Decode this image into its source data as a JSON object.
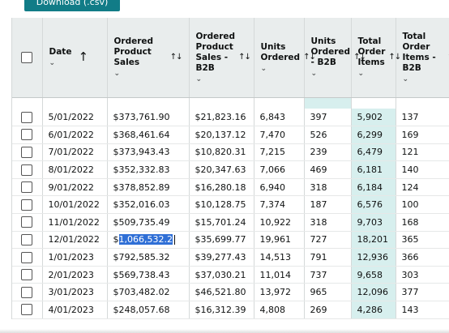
{
  "download_button": {
    "label": "Download (.csv)"
  },
  "colors": {
    "accent": "#117c87",
    "header_bg": "#e9eded",
    "highlight_column": "#d7efee",
    "selection": "#2f6fd6"
  },
  "columns": [
    {
      "label": "Date",
      "sort": "up-arrow-icon"
    },
    {
      "label": "Ordered Product Sales",
      "sort": "sort-updown-icon"
    },
    {
      "label": "Ordered Product Sales - B2B",
      "sort": "sort-updown-icon"
    },
    {
      "label": "Units Ordered",
      "sort": "sort-updown-icon"
    },
    {
      "label": "Units Ordered - B2B",
      "sort": "sort-updown-icon"
    },
    {
      "label": "Total Order Items",
      "sort": "sort-updown-icon"
    },
    {
      "label": "Total Order Items - B2B",
      "sort": "sort-updown-icon"
    }
  ],
  "rows": [
    {
      "date": "5/01/2022",
      "sales": "$373,761.90",
      "sales_b2b": "$21,823.16",
      "units": "6,843",
      "units_b2b": "397",
      "items": "5,902",
      "items_b2b": "137"
    },
    {
      "date": "6/01/2022",
      "sales": "$368,461.64",
      "sales_b2b": "$20,137.12",
      "units": "7,470",
      "units_b2b": "526",
      "items": "6,299",
      "items_b2b": "169"
    },
    {
      "date": "7/01/2022",
      "sales": "$373,943.43",
      "sales_b2b": "$10,820.31",
      "units": "7,215",
      "units_b2b": "239",
      "items": "6,479",
      "items_b2b": "121"
    },
    {
      "date": "8/01/2022",
      "sales": "$352,332.83",
      "sales_b2b": "$20,347.63",
      "units": "7,066",
      "units_b2b": "469",
      "items": "6,181",
      "items_b2b": "140"
    },
    {
      "date": "9/01/2022",
      "sales": "$378,852.89",
      "sales_b2b": "$16,280.18",
      "units": "6,940",
      "units_b2b": "318",
      "items": "6,184",
      "items_b2b": "124"
    },
    {
      "date": "10/01/2022",
      "sales": "$352,016.03",
      "sales_b2b": "$10,128.75",
      "units": "7,374",
      "units_b2b": "187",
      "items": "6,576",
      "items_b2b": "100"
    },
    {
      "date": "11/01/2022",
      "sales": "$509,735.49",
      "sales_b2b": "$15,701.24",
      "units": "10,922",
      "units_b2b": "318",
      "items": "9,703",
      "items_b2b": "168"
    },
    {
      "date": "12/01/2022",
      "sales_prefix": "$",
      "sales_selected": "1,066,532.2",
      "sales_b2b": "$35,699.77",
      "units": "19,961",
      "units_b2b": "727",
      "items": "18,201",
      "items_b2b": "365"
    },
    {
      "date": "1/01/2023",
      "sales": "$792,585.32",
      "sales_b2b": "$39,277.43",
      "units": "14,513",
      "units_b2b": "791",
      "items": "12,936",
      "items_b2b": "366"
    },
    {
      "date": "2/01/2023",
      "sales": "$569,738.43",
      "sales_b2b": "$37,030.21",
      "units": "11,014",
      "units_b2b": "737",
      "items": "9,658",
      "items_b2b": "303"
    },
    {
      "date": "3/01/2023",
      "sales": "$703,482.02",
      "sales_b2b": "$46,521.80",
      "units": "13,972",
      "units_b2b": "965",
      "items": "12,096",
      "items_b2b": "377"
    },
    {
      "date": "4/01/2023",
      "sales": "$248,057.68",
      "sales_b2b": "$16,312.39",
      "units": "4,808",
      "units_b2b": "269",
      "items": "4,286",
      "items_b2b": "143"
    }
  ]
}
